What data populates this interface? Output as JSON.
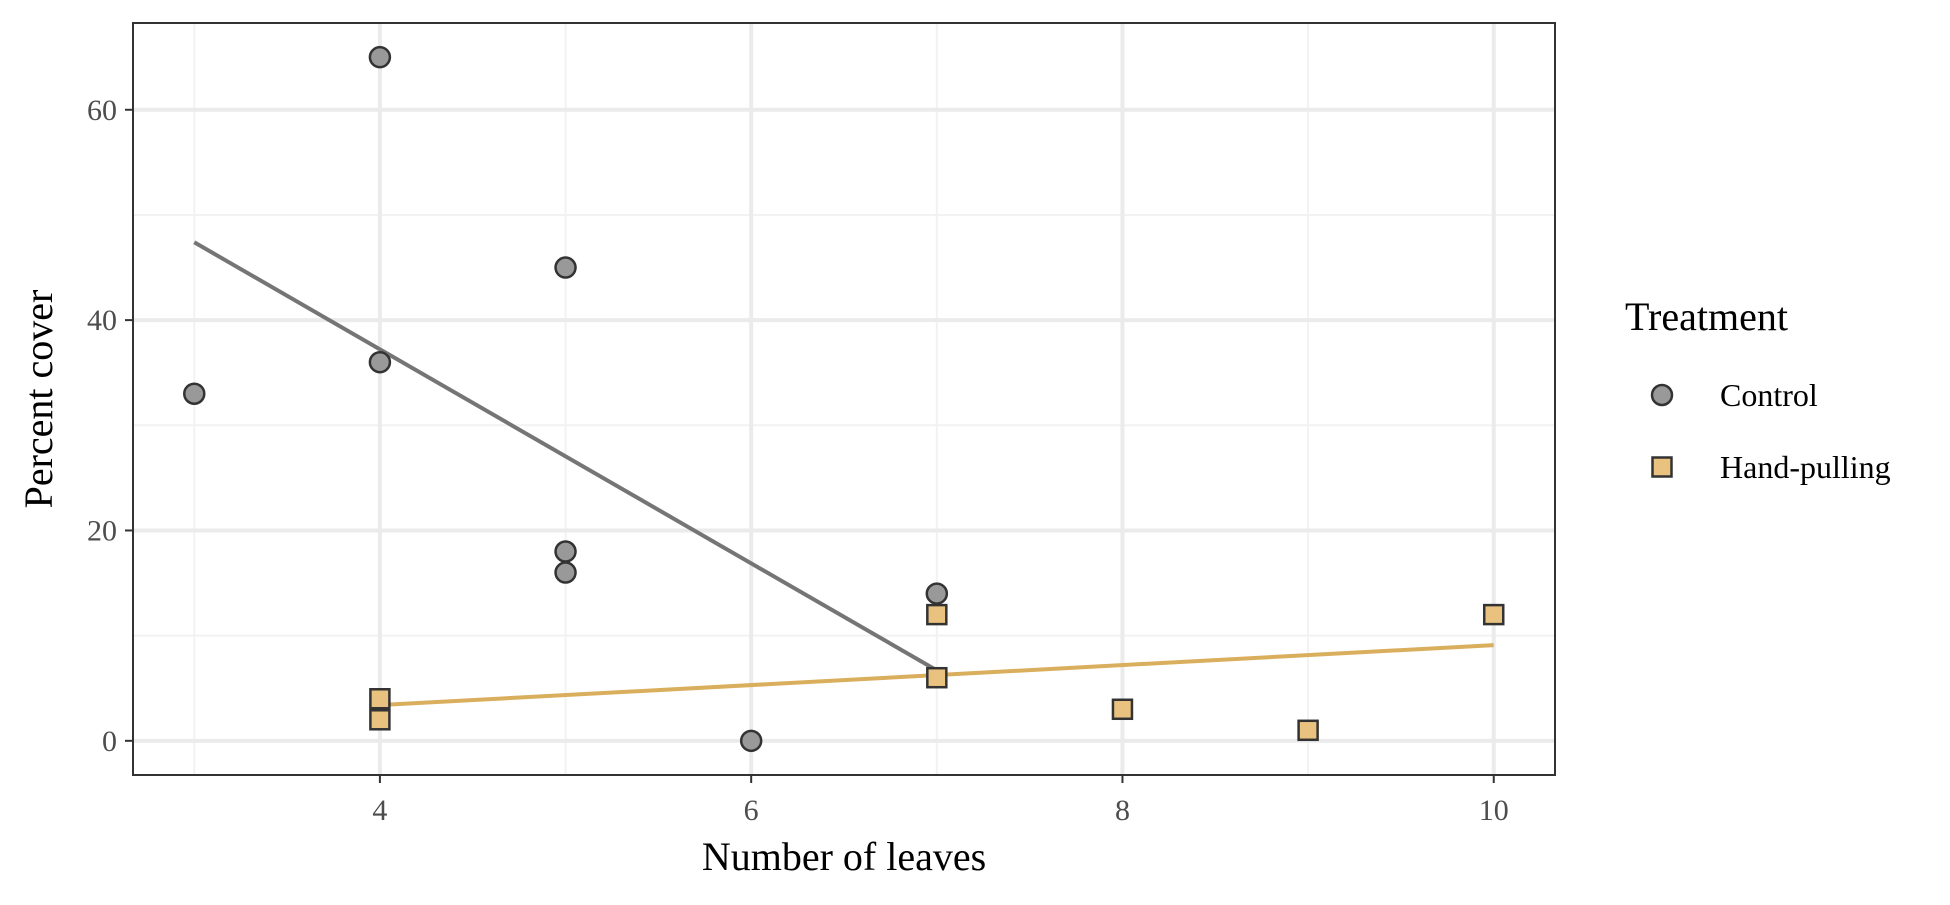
{
  "chart_data": {
    "type": "scatter",
    "title": "",
    "xlabel": "Number of leaves",
    "ylabel": "Percent cover",
    "xlim": [
      2.67,
      10.33
    ],
    "ylim": [
      -3.25,
      68.25
    ],
    "x_ticks": [
      4,
      6,
      8,
      10
    ],
    "y_ticks": [
      0,
      20,
      40,
      60
    ],
    "grid": true,
    "legend": {
      "title": "Treatment",
      "position": "right"
    },
    "series": [
      {
        "name": "Control",
        "marker": "circle",
        "color": "#999999",
        "points": [
          {
            "x": 3,
            "y": 33
          },
          {
            "x": 4,
            "y": 65
          },
          {
            "x": 4,
            "y": 36
          },
          {
            "x": 5,
            "y": 45
          },
          {
            "x": 5,
            "y": 18
          },
          {
            "x": 5,
            "y": 16
          },
          {
            "x": 6,
            "y": 0
          },
          {
            "x": 7,
            "y": 14
          }
        ],
        "trend": {
          "x": [
            3,
            7
          ],
          "y": [
            47.4,
            6.7
          ]
        },
        "trend_color": "#757575"
      },
      {
        "name": "Hand-pulling",
        "marker": "square",
        "color": "#e9c27f",
        "points": [
          {
            "x": 4,
            "y": 4
          },
          {
            "x": 4,
            "y": 2
          },
          {
            "x": 7,
            "y": 12
          },
          {
            "x": 7,
            "y": 6
          },
          {
            "x": 8,
            "y": 3
          },
          {
            "x": 9,
            "y": 1
          },
          {
            "x": 10,
            "y": 12
          }
        ],
        "trend": {
          "x": [
            4,
            10
          ],
          "y": [
            3.4,
            9.1
          ]
        },
        "trend_color": "#d9ae5c"
      }
    ]
  }
}
